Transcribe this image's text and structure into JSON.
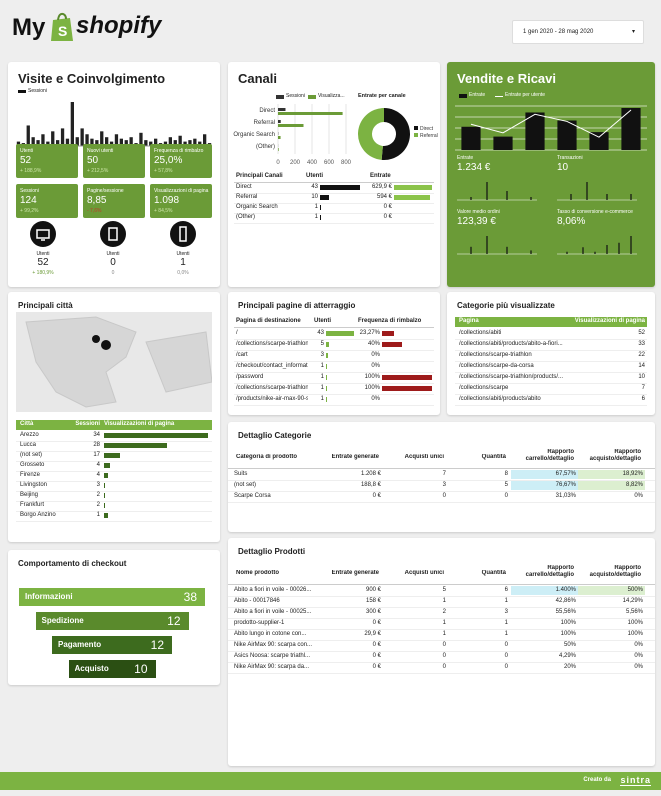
{
  "header": {
    "logo_prefix": "My",
    "logo": "shopify",
    "date_range": "1 gen 2020 - 28 mag 2020"
  },
  "visite": {
    "title": "Visite e Coinvolgimento",
    "legend": "Sessioni",
    "sessions": [
      3,
      2,
      14,
      6,
      4,
      8,
      3,
      10,
      4,
      12,
      5,
      30,
      6,
      12,
      8,
      5,
      4,
      10,
      6,
      3,
      8,
      5,
      4,
      6,
      2,
      9,
      4,
      3,
      5,
      2,
      3,
      6,
      4,
      7,
      3,
      4,
      5,
      3,
      8,
      2
    ],
    "kpis": [
      {
        "label": "Utenti",
        "value": "52",
        "delta": "+ 188,9%"
      },
      {
        "label": "Nuovi utenti",
        "value": "50",
        "delta": "+ 212,5%"
      },
      {
        "label": "Frequenza di rimbalzo",
        "value": "25,0%",
        "delta": "+ 57,8%"
      },
      {
        "label": "Sessioni",
        "value": "124",
        "delta": "+ 99,2%"
      },
      {
        "label": "Pagine/sessione",
        "value": "8,85",
        "delta": "- 7,6%"
      },
      {
        "label": "Visualizzazioni di pagina",
        "value": "1.098",
        "delta": "+ 84,5%"
      }
    ],
    "devices": [
      {
        "label": "Utenti",
        "value": "52",
        "delta": "+ 180,9%"
      },
      {
        "label": "Utenti",
        "value": "0",
        "delta": "0"
      },
      {
        "label": "Utenti",
        "value": "1",
        "delta": "0,0%"
      }
    ]
  },
  "canali": {
    "title": "Canali",
    "legend": [
      "Sessioni",
      "Visualizza..."
    ],
    "categories": [
      "Direct",
      "Referral",
      "Organic Search",
      "(Other)"
    ],
    "sessions": [
      88,
      32,
      3,
      1
    ],
    "views": [
      760,
      300,
      30,
      8
    ],
    "xlim": [
      0,
      800
    ],
    "xticks": [
      0,
      200,
      400,
      600,
      800
    ],
    "donut": {
      "title": "Entrate per canale",
      "names": [
        "Direct",
        "Referral"
      ],
      "values": [
        629.9,
        594
      ],
      "colors": [
        "#111111",
        "#7cb342"
      ]
    },
    "table": {
      "headers": [
        "Principali Canali",
        "Utenti",
        "Entrate"
      ],
      "rows": [
        {
          "name": "Direct",
          "users": 43,
          "revenue": {
            "value": 629.9,
            "label": "629,9 €"
          }
        },
        {
          "name": "Referral",
          "users": 10,
          "revenue": {
            "value": 594,
            "label": "594 €"
          }
        },
        {
          "name": "Organic Search",
          "users": 1,
          "revenue": {
            "value": 0,
            "label": "0 €"
          }
        },
        {
          "name": "(Other)",
          "users": 1,
          "revenue": {
            "value": 0,
            "label": "0 €"
          }
        }
      ]
    }
  },
  "vendite": {
    "title": "Vendite e Ricavi",
    "legend": [
      "Entrate",
      "Entrate per utente"
    ],
    "revenue": [
      260,
      150,
      420,
      330,
      200,
      470
    ],
    "per_user": [
      18,
      12,
      25,
      20,
      9,
      28
    ],
    "kpis": [
      {
        "label": "Entrate",
        "value": "1.234 €",
        "spark": [
          0,
          0,
          0,
          1,
          0,
          0,
          0,
          6,
          0,
          0,
          0,
          0,
          3,
          0,
          0,
          0,
          0,
          0,
          1,
          0
        ]
      },
      {
        "label": "Transazioni",
        "value": "10",
        "spark": [
          0,
          0,
          0,
          1,
          0,
          0,
          0,
          3,
          0,
          0,
          0,
          0,
          1,
          0,
          0,
          0,
          0,
          0,
          1,
          0
        ]
      },
      {
        "label": "Valore medio ordini",
        "value": "123,39 €",
        "spark": [
          0,
          0,
          0,
          2,
          0,
          0,
          0,
          5,
          0,
          0,
          0,
          0,
          2,
          0,
          0,
          0,
          0,
          0,
          1,
          0
        ]
      },
      {
        "label": "Tasso di conversione e-commerce",
        "value": "8,06%",
        "spark": [
          0,
          0,
          1,
          0,
          0,
          0,
          3,
          0,
          0,
          1,
          0,
          0,
          4,
          0,
          0,
          5,
          0,
          0,
          8,
          0
        ]
      }
    ]
  },
  "citta": {
    "title": "Principali città",
    "headers": [
      "Città",
      "Sessioni",
      "Visualizzazioni di pagina"
    ],
    "rows": [
      {
        "name": "Arezzo",
        "sessions": 34,
        "views": 330
      },
      {
        "name": "Lucca",
        "sessions": 28,
        "views": 200
      },
      {
        "name": "(not set)",
        "sessions": 17,
        "views": 50
      },
      {
        "name": "Grosseto",
        "sessions": 4,
        "views": 20
      },
      {
        "name": "Firenze",
        "sessions": 4,
        "views": 12
      },
      {
        "name": "Livingston",
        "sessions": 3,
        "views": 3
      },
      {
        "name": "Beijing",
        "sessions": 2,
        "views": 3
      },
      {
        "name": "Frankfurt",
        "sessions": 2,
        "views": 3
      },
      {
        "name": "Borgo Anzino",
        "sessions": 1,
        "views": 12
      }
    ]
  },
  "atterraggio": {
    "title": "Principali pagine di atterraggio",
    "headers": [
      "Pagina di destinazione",
      "Utenti",
      "Frequenza di rimbalzo"
    ],
    "rows": [
      {
        "page": "/",
        "users": 43,
        "bounce": {
          "value": 23.27,
          "label": "23,27%"
        }
      },
      {
        "page": "/collections/scarpe-triathlon",
        "users": 5,
        "bounce": {
          "value": 40,
          "label": "40%"
        }
      },
      {
        "page": "/cart",
        "users": 3,
        "bounce": {
          "value": 0,
          "label": "0%"
        }
      },
      {
        "page": "/checkout/contact_information/...",
        "users": 1,
        "bounce": {
          "value": 0,
          "label": "0%"
        }
      },
      {
        "page": "/password",
        "users": 1,
        "bounce": {
          "value": 100,
          "label": "100%"
        }
      },
      {
        "page": "/collections/scarpe-triathlon/pro...",
        "users": 1,
        "bounce": {
          "value": 100,
          "label": "100%"
        }
      },
      {
        "page": "/products/nike-air-max-90-scarpa...",
        "users": 1,
        "bounce": {
          "value": 0,
          "label": "0%"
        }
      }
    ]
  },
  "categorie": {
    "title": "Categorie più visualizzate",
    "headers": [
      "Pagina",
      "Visualizzazioni di pagina"
    ],
    "rows": [
      [
        "/collections/abiti",
        52
      ],
      [
        "/collections/abiti/products/abito-a-fiori...",
        33
      ],
      [
        "/collections/scarpe-triathlon",
        22
      ],
      [
        "/collections/scarpe-da-corsa",
        14
      ],
      [
        "/collections/scarpe-triathlon/products/...",
        10
      ],
      [
        "/collections/scarpe",
        7
      ],
      [
        "/collections/abiti/products/abito",
        6
      ]
    ]
  },
  "dettaglio_categorie": {
    "title": "Dettaglio Categorie",
    "headers": [
      "Categoria di prodotto",
      "Entrate generate",
      "Acquisti unici",
      "Quantità",
      "Rapporto carrello/dettaglio",
      "Rapporto acquisto/dettaglio"
    ],
    "rows": [
      [
        "Suits",
        "1.208 €",
        7,
        8,
        "67,57%",
        "18,92%"
      ],
      [
        "(not set)",
        "188,8 €",
        3,
        5,
        "76,67%",
        "8,82%"
      ],
      [
        "Scarpe Corsa",
        "0 €",
        0,
        0,
        "31,03%",
        "0%"
      ]
    ]
  },
  "checkout": {
    "title": "Comportamento di checkout",
    "steps": [
      {
        "name": "Informazioni",
        "value": 38
      },
      {
        "name": "Spedizione",
        "value": 12
      },
      {
        "name": "Pagamento",
        "value": 12
      },
      {
        "name": "Acquisto",
        "value": 10
      }
    ]
  },
  "dettaglio_prodotti": {
    "title": "Dettaglio Prodotti",
    "headers": [
      "Nome prodotto",
      "Entrate generate",
      "Acquisti unici",
      "Quantità",
      "Rapporto carrello/dettaglio",
      "Rapporto acquisto/dettaglio"
    ],
    "rows": [
      [
        "Abito a fiori in voile - 00026...",
        "900 €",
        5,
        6,
        "1.400%",
        "500%"
      ],
      [
        "Abito - 00017846",
        "158 €",
        1,
        1,
        "42,86%",
        "14,29%"
      ],
      [
        "Abito a fiori in voile - 00025...",
        "300 €",
        2,
        3,
        "55,56%",
        "5,56%"
      ],
      [
        "prodotto-supplier-1",
        "0 €",
        1,
        1,
        "100%",
        "100%"
      ],
      [
        "Abito lungo in cotone con...",
        "29,9 €",
        1,
        1,
        "100%",
        "100%"
      ],
      [
        "Nike AirMax 90: scarpa con...",
        "0 €",
        0,
        0,
        "50%",
        "0%"
      ],
      [
        "Asics Noosa: scarpe triathl...",
        "0 €",
        0,
        0,
        "4,29%",
        "0%"
      ],
      [
        "Nike AirMax 90: scarpa da...",
        "0 €",
        0,
        0,
        "20%",
        "0%"
      ]
    ]
  },
  "footer": {
    "created_by": "Creato da",
    "brand": "sintra"
  }
}
